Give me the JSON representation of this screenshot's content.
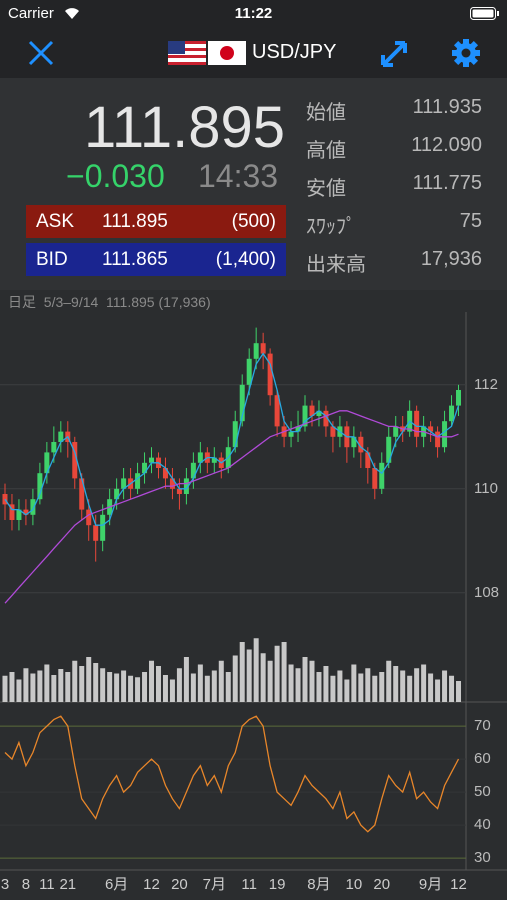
{
  "status_bar": {
    "carrier": "Carrier",
    "time": "11:22"
  },
  "header": {
    "pair": "USD/JPY"
  },
  "quote": {
    "price": "111.895",
    "change": "−0.030",
    "time": "14:33",
    "ask": {
      "label": "ASK",
      "price": "111.895",
      "size": "(500)"
    },
    "bid": {
      "label": "BID",
      "price": "111.865",
      "size": "(1,400)"
    }
  },
  "stats": [
    {
      "label": "始値",
      "value": "111.935"
    },
    {
      "label": "高値",
      "value": "112.090"
    },
    {
      "label": "安値",
      "value": "111.775"
    },
    {
      "label": "ｽﾜｯﾌﾟ",
      "value": "75"
    },
    {
      "label": "出来高",
      "value": "17,936"
    }
  ],
  "chart_data": {
    "type": "candlestick",
    "info": "日足  5/3–9/14  111.895 (17,936)",
    "categories": [
      "3",
      null,
      null,
      "8",
      null,
      null,
      "11",
      null,
      null,
      "21",
      null,
      null,
      null,
      null,
      null,
      null,
      "6月",
      null,
      null,
      null,
      null,
      "12",
      null,
      null,
      null,
      "20",
      null,
      null,
      null,
      null,
      "7月",
      null,
      null,
      null,
      null,
      "11",
      null,
      null,
      null,
      "19",
      null,
      null,
      null,
      null,
      null,
      "8月",
      null,
      null,
      null,
      null,
      "10",
      null,
      null,
      null,
      "20",
      null,
      null,
      null,
      null,
      null,
      null,
      "9月",
      null,
      null,
      null,
      "12"
    ],
    "ohlc": [
      [
        109.9,
        110.1,
        109.4,
        109.7
      ],
      [
        109.7,
        109.9,
        109.2,
        109.4
      ],
      [
        109.4,
        109.8,
        109.2,
        109.6
      ],
      [
        109.6,
        109.8,
        109.3,
        109.5
      ],
      [
        109.5,
        110.0,
        109.3,
        109.8
      ],
      [
        109.8,
        110.5,
        109.7,
        110.3
      ],
      [
        110.3,
        110.9,
        110.1,
        110.7
      ],
      [
        110.7,
        111.2,
        110.5,
        110.9
      ],
      [
        110.9,
        111.3,
        110.7,
        111.1
      ],
      [
        111.1,
        111.3,
        110.6,
        110.9
      ],
      [
        110.9,
        111.0,
        110.0,
        110.2
      ],
      [
        110.2,
        110.3,
        109.4,
        109.6
      ],
      [
        109.6,
        109.8,
        109.0,
        109.3
      ],
      [
        109.3,
        109.5,
        108.6,
        109.0
      ],
      [
        109.0,
        109.7,
        108.8,
        109.5
      ],
      [
        109.5,
        110.0,
        109.3,
        109.8
      ],
      [
        109.8,
        110.2,
        109.6,
        110.0
      ],
      [
        110.0,
        110.4,
        109.8,
        110.2
      ],
      [
        110.2,
        110.4,
        109.8,
        110.0
      ],
      [
        110.0,
        110.5,
        109.9,
        110.3
      ],
      [
        110.3,
        110.7,
        110.1,
        110.5
      ],
      [
        110.5,
        110.8,
        110.3,
        110.6
      ],
      [
        110.6,
        110.7,
        110.2,
        110.4
      ],
      [
        110.4,
        110.6,
        110.0,
        110.2
      ],
      [
        110.2,
        110.4,
        109.8,
        110.0
      ],
      [
        110.0,
        110.2,
        109.6,
        109.9
      ],
      [
        109.9,
        110.4,
        109.7,
        110.2
      ],
      [
        110.2,
        110.7,
        110.0,
        110.5
      ],
      [
        110.5,
        110.9,
        110.3,
        110.7
      ],
      [
        110.7,
        110.8,
        110.3,
        110.5
      ],
      [
        110.5,
        110.8,
        110.3,
        110.6
      ],
      [
        110.6,
        110.7,
        110.2,
        110.4
      ],
      [
        110.4,
        111.0,
        110.3,
        110.8
      ],
      [
        110.8,
        111.5,
        110.7,
        111.3
      ],
      [
        111.3,
        112.2,
        111.2,
        112.0
      ],
      [
        112.0,
        112.7,
        111.8,
        112.5
      ],
      [
        112.5,
        113.1,
        112.3,
        112.8
      ],
      [
        112.8,
        113.0,
        112.3,
        112.6
      ],
      [
        112.6,
        112.7,
        111.6,
        111.8
      ],
      [
        111.8,
        111.9,
        111.0,
        111.2
      ],
      [
        111.2,
        111.4,
        110.8,
        111.0
      ],
      [
        111.0,
        111.3,
        110.8,
        111.1
      ],
      [
        111.1,
        111.5,
        110.9,
        111.2
      ],
      [
        111.2,
        111.8,
        111.1,
        111.6
      ],
      [
        111.6,
        111.7,
        111.2,
        111.4
      ],
      [
        111.4,
        111.7,
        111.2,
        111.5
      ],
      [
        111.5,
        111.6,
        111.0,
        111.2
      ],
      [
        111.2,
        111.3,
        110.7,
        111.0
      ],
      [
        111.0,
        111.4,
        110.8,
        111.2
      ],
      [
        111.2,
        111.3,
        110.5,
        110.8
      ],
      [
        110.8,
        111.2,
        110.6,
        111.0
      ],
      [
        111.0,
        111.1,
        110.4,
        110.7
      ],
      [
        110.7,
        110.8,
        110.1,
        110.4
      ],
      [
        110.4,
        110.5,
        109.8,
        110.0
      ],
      [
        110.0,
        110.7,
        109.9,
        110.5
      ],
      [
        110.5,
        111.2,
        110.4,
        111.0
      ],
      [
        111.0,
        111.4,
        110.8,
        111.2
      ],
      [
        111.2,
        111.4,
        110.9,
        111.1
      ],
      [
        111.1,
        111.7,
        111.0,
        111.5
      ],
      [
        111.5,
        111.6,
        110.8,
        111.0
      ],
      [
        111.0,
        111.4,
        110.8,
        111.2
      ],
      [
        111.2,
        111.3,
        110.9,
        111.1
      ],
      [
        111.1,
        111.2,
        110.6,
        110.8
      ],
      [
        110.8,
        111.5,
        110.7,
        111.3
      ],
      [
        111.3,
        111.8,
        111.2,
        111.6
      ],
      [
        111.6,
        112.0,
        111.4,
        111.9
      ]
    ],
    "up_color": "#3fd36a",
    "down_color": "#e8473a",
    "ma": [
      {
        "color": "#27a9e1",
        "values": [
          109.8,
          109.6,
          109.6,
          109.5,
          109.6,
          109.9,
          110.3,
          110.6,
          110.9,
          111.0,
          110.7,
          110.2,
          109.7,
          109.3,
          109.3,
          109.4,
          109.8,
          110.0,
          110.1,
          110.2,
          110.3,
          110.5,
          110.5,
          110.4,
          110.2,
          110.0,
          110.0,
          110.2,
          110.5,
          110.6,
          110.6,
          110.5,
          110.6,
          110.8,
          111.4,
          111.9,
          112.4,
          112.6,
          112.4,
          111.9,
          111.3,
          111.1,
          111.1,
          111.3,
          111.4,
          111.5,
          111.4,
          111.2,
          111.1,
          111.0,
          111.0,
          110.8,
          110.7,
          110.4,
          110.3,
          110.5,
          110.9,
          111.1,
          111.3,
          111.2,
          111.2,
          111.1,
          111.0,
          111.1,
          111.2,
          111.6
        ]
      },
      {
        "color": "#b04ad8",
        "values": [
          107.8,
          107.95,
          108.1,
          108.25,
          108.4,
          108.55,
          108.7,
          108.85,
          109.0,
          109.15,
          109.3,
          109.4,
          109.5,
          109.55,
          109.6,
          109.65,
          109.7,
          109.75,
          109.8,
          109.85,
          109.9,
          109.95,
          110.0,
          110.05,
          110.05,
          110.1,
          110.1,
          110.15,
          110.2,
          110.25,
          110.3,
          110.35,
          110.4,
          110.5,
          110.6,
          110.7,
          110.8,
          110.9,
          111.0,
          111.05,
          111.1,
          111.15,
          111.2,
          111.25,
          111.3,
          111.35,
          111.4,
          111.45,
          111.5,
          111.5,
          111.45,
          111.4,
          111.35,
          111.3,
          111.25,
          111.2,
          111.2,
          111.15,
          111.15,
          111.1,
          111.1,
          111.05,
          111.0,
          111.0,
          111.0,
          111.05
        ]
      }
    ],
    "ylim": [
      105.9,
      113.4
    ],
    "yticks": [
      108,
      110,
      112
    ],
    "volume": {
      "color": "#c8c8c8",
      "ylim": [
        0,
        100
      ],
      "values": [
        35,
        40,
        30,
        45,
        38,
        42,
        50,
        36,
        44,
        40,
        55,
        48,
        60,
        52,
        45,
        40,
        38,
        42,
        35,
        33,
        40,
        55,
        48,
        36,
        30,
        45,
        60,
        38,
        50,
        35,
        42,
        55,
        40,
        62,
        80,
        70,
        85,
        65,
        55,
        75,
        80,
        50,
        45,
        60,
        55,
        40,
        48,
        35,
        42,
        30,
        50,
        38,
        45,
        35,
        40,
        55,
        48,
        42,
        35,
        45,
        50,
        38,
        30,
        42,
        35,
        28
      ]
    },
    "rsi": {
      "color": "#e8862a",
      "band_color": "#5b6b3a",
      "ylim": [
        26.4,
        77.3
      ],
      "yticks": [
        30,
        40,
        50,
        60,
        70
      ],
      "values": [
        62,
        60,
        65,
        58,
        62,
        68,
        70,
        72,
        73,
        70,
        58,
        48,
        45,
        42,
        48,
        52,
        55,
        50,
        52,
        56,
        58,
        60,
        58,
        52,
        48,
        45,
        50,
        55,
        58,
        52,
        55,
        50,
        58,
        62,
        70,
        72,
        73,
        70,
        58,
        50,
        48,
        46,
        50,
        55,
        52,
        50,
        48,
        45,
        50,
        42,
        44,
        40,
        38,
        40,
        48,
        55,
        52,
        50,
        56,
        48,
        50,
        47,
        45,
        52,
        56,
        60
      ]
    }
  }
}
